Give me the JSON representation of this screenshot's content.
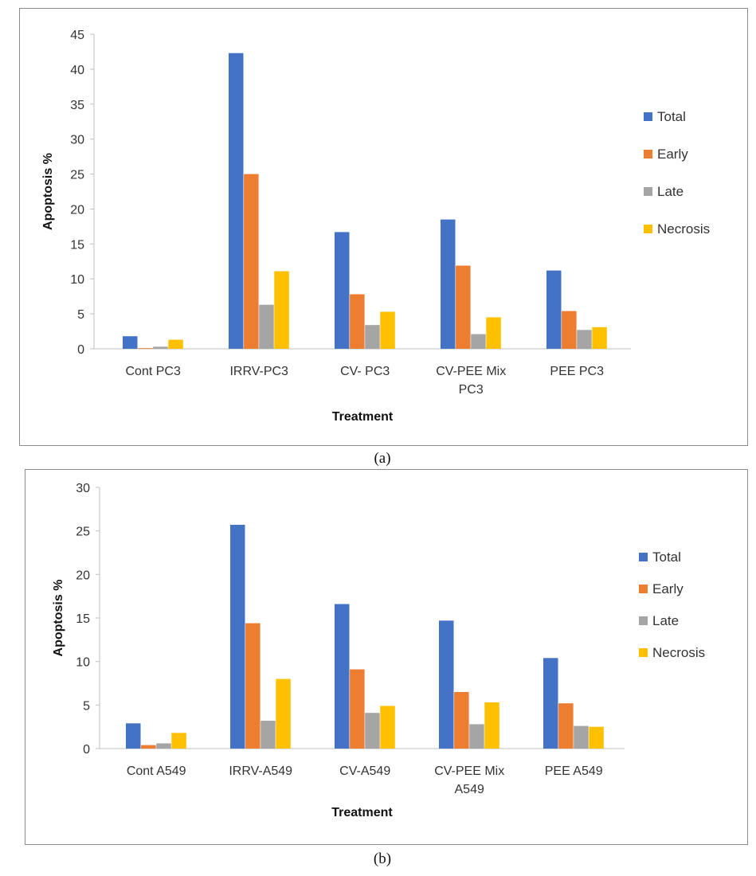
{
  "panels": [
    {
      "caption": "(a)",
      "chart_data": {
        "type": "bar",
        "title": "",
        "xlabel": "Treatment",
        "ylabel": "Apoptosis %",
        "ylim": [
          0,
          45
        ],
        "yticks": [
          0,
          5,
          10,
          15,
          20,
          25,
          30,
          35,
          40,
          45
        ],
        "categories": [
          [
            "Cont PC3"
          ],
          [
            "IRRV-PC3"
          ],
          [
            "CV- PC3"
          ],
          [
            "CV-PEE Mix",
            "PC3"
          ],
          [
            "PEE PC3"
          ]
        ],
        "series": [
          {
            "name": "Total",
            "color": "#4472C4",
            "values": [
              1.8,
              42.3,
              16.7,
              18.5,
              11.2
            ]
          },
          {
            "name": "Early",
            "color": "#ED7D31",
            "values": [
              0.1,
              25.0,
              7.8,
              11.9,
              5.4
            ]
          },
          {
            "name": "Late",
            "color": "#A5A5A5",
            "values": [
              0.3,
              6.3,
              3.4,
              2.1,
              2.7
            ]
          },
          {
            "name": "Necrosis",
            "color": "#FFC000",
            "values": [
              1.3,
              11.1,
              5.3,
              4.5,
              3.1
            ]
          }
        ],
        "legend": "right"
      }
    },
    {
      "caption": "(b)",
      "chart_data": {
        "type": "bar",
        "title": "",
        "xlabel": "Treatment",
        "ylabel": "Apoptosis %",
        "ylim": [
          0,
          30
        ],
        "yticks": [
          0,
          5,
          10,
          15,
          20,
          25,
          30
        ],
        "categories": [
          [
            "Cont A549"
          ],
          [
            "IRRV-A549"
          ],
          [
            "CV-A549"
          ],
          [
            "CV-PEE Mix",
            "A549"
          ],
          [
            "PEE A549"
          ]
        ],
        "series": [
          {
            "name": "Total",
            "color": "#4472C4",
            "values": [
              2.9,
              25.7,
              16.6,
              14.7,
              10.4
            ]
          },
          {
            "name": "Early",
            "color": "#ED7D31",
            "values": [
              0.4,
              14.4,
              9.1,
              6.5,
              5.2
            ]
          },
          {
            "name": "Late",
            "color": "#A5A5A5",
            "values": [
              0.6,
              3.2,
              4.1,
              2.8,
              2.6
            ]
          },
          {
            "name": "Necrosis",
            "color": "#FFC000",
            "values": [
              1.8,
              8.0,
              4.9,
              5.3,
              2.5
            ]
          }
        ],
        "legend": "right"
      }
    }
  ]
}
